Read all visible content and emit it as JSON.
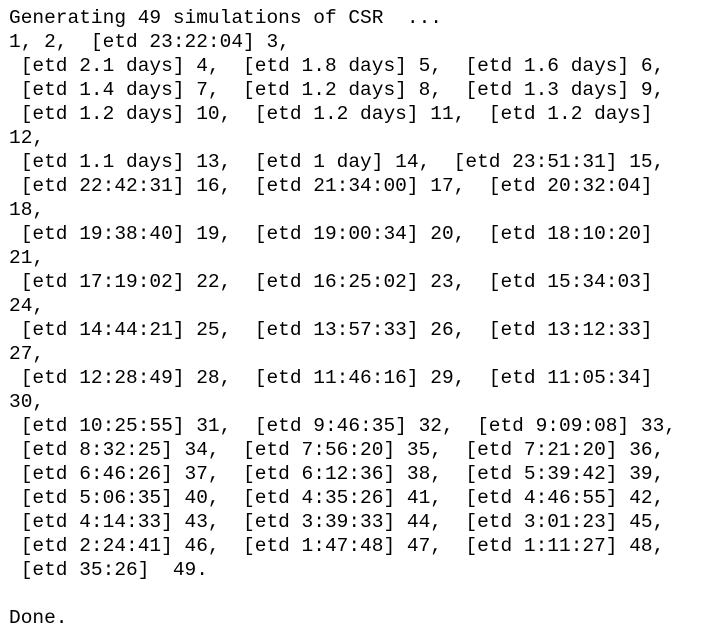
{
  "console": {
    "lines": [
      "Generating 49 simulations of CSR  ...",
      "1, 2,  [etd 23:22:04] 3,",
      " [etd 2.1 days] 4,  [etd 1.8 days] 5,  [etd 1.6 days] 6,",
      " [etd 1.4 days] 7,  [etd 1.2 days] 8,  [etd 1.3 days] 9,",
      " [etd 1.2 days] 10,  [etd 1.2 days] 11,  [etd 1.2 days]",
      "12,",
      " [etd 1.1 days] 13,  [etd 1 day] 14,  [etd 23:51:31] 15,",
      " [etd 22:42:31] 16,  [etd 21:34:00] 17,  [etd 20:32:04]",
      "18,",
      " [etd 19:38:40] 19,  [etd 19:00:34] 20,  [etd 18:10:20]",
      "21,",
      " [etd 17:19:02] 22,  [etd 16:25:02] 23,  [etd 15:34:03]",
      "24,",
      " [etd 14:44:21] 25,  [etd 13:57:33] 26,  [etd 13:12:33]",
      "27,",
      " [etd 12:28:49] 28,  [etd 11:46:16] 29,  [etd 11:05:34]",
      "30,",
      " [etd 10:25:55] 31,  [etd 9:46:35] 32,  [etd 9:09:08] 33,",
      " [etd 8:32:25] 34,  [etd 7:56:20] 35,  [etd 7:21:20] 36,",
      " [etd 6:46:26] 37,  [etd 6:12:36] 38,  [etd 5:39:42] 39,",
      " [etd 5:06:35] 40,  [etd 4:35:26] 41,  [etd 4:46:55] 42,",
      " [etd 4:14:33] 43,  [etd 3:39:33] 44,  [etd 3:01:23] 45,",
      " [etd 2:24:41] 46,  [etd 1:47:48] 47,  [etd 1:11:27] 48,",
      " [etd 35:26]  49.",
      "",
      "Done."
    ]
  }
}
